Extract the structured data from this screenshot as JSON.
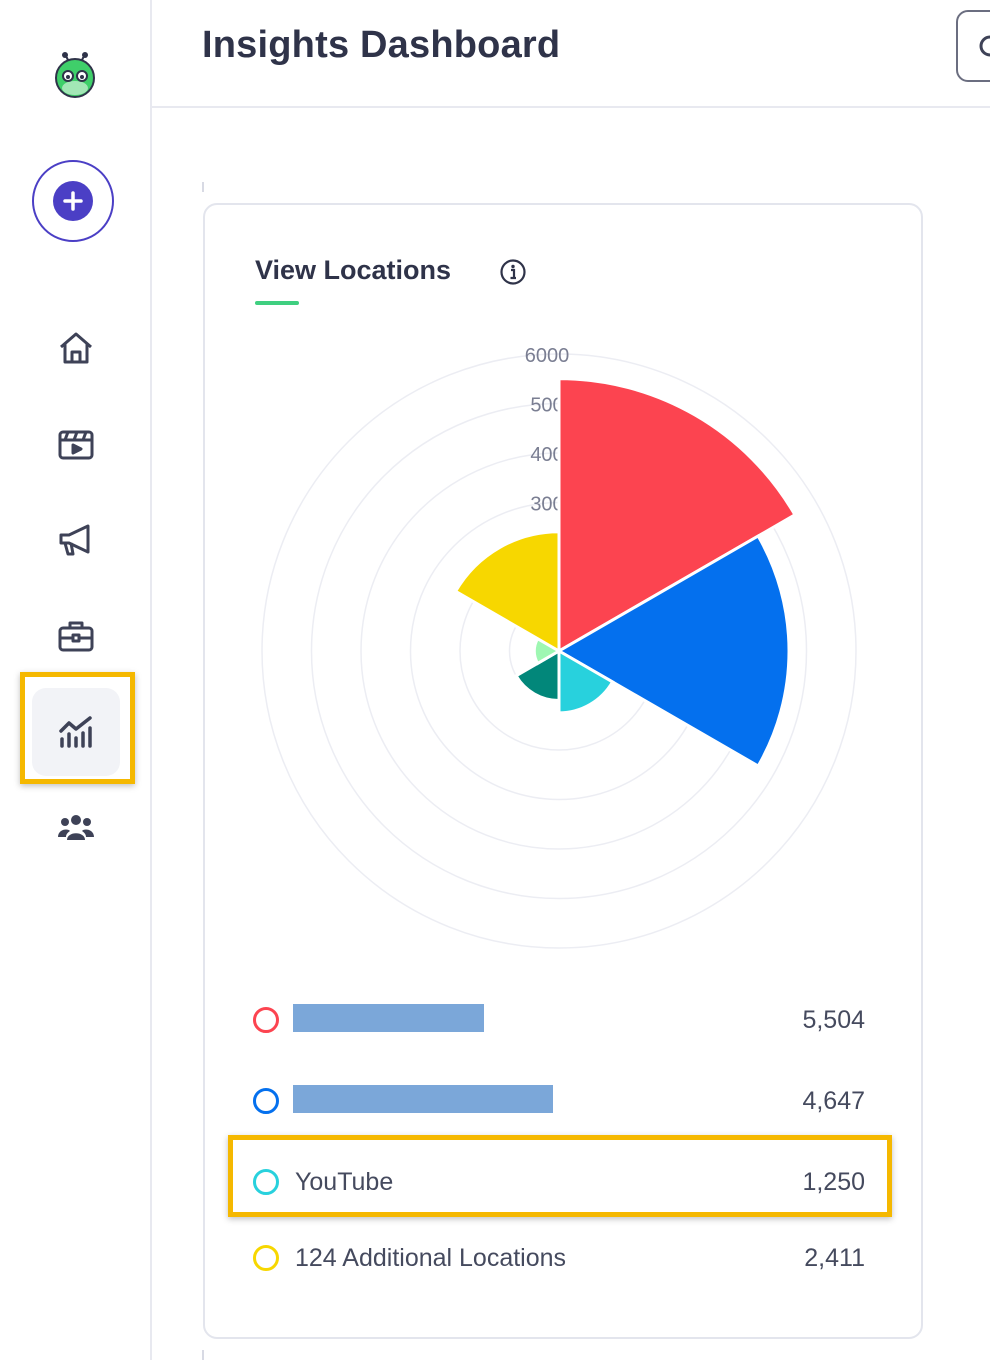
{
  "header": {
    "title": "Insights Dashboard"
  },
  "card": {
    "title": "View Locations"
  },
  "chart_data": {
    "type": "polar-area",
    "radial_ticks": [
      "6000",
      "500",
      "400",
      "300"
    ],
    "rmax": 6000,
    "slices": [
      {
        "value": 5504,
        "color": "#fc4450",
        "start_deg": 0,
        "end_deg": 60
      },
      {
        "value": 4647,
        "color": "#0470ee",
        "start_deg": 60,
        "end_deg": 120
      },
      {
        "value": 1250,
        "color": "#28d1dd",
        "start_deg": 120,
        "end_deg": 180
      },
      {
        "value": 1000,
        "color": "#02877a",
        "start_deg": 180,
        "end_deg": 240
      },
      {
        "value": 500,
        "color": "#9ef7b2",
        "start_deg": 240,
        "end_deg": 300
      },
      {
        "value": 2411,
        "color": "#f7d700",
        "start_deg": 300,
        "end_deg": 360
      }
    ]
  },
  "legend": [
    {
      "label": "",
      "value": "5,504",
      "color": "#fc4450",
      "redacted_bar_fraction": 0.76
    },
    {
      "label": "",
      "value": "4,647",
      "color": "#0470ee",
      "redacted_bar_fraction": 1.0
    },
    {
      "label": "YouTube",
      "value": "1,250",
      "color": "#28d1dd"
    },
    {
      "label": "124 Additional Locations",
      "value": "2,411",
      "color": "#f7d700"
    }
  ]
}
